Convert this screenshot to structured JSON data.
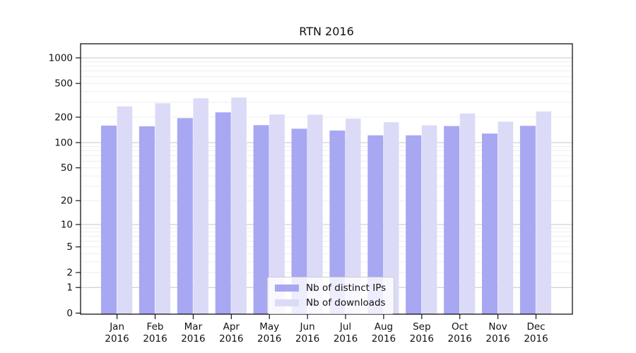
{
  "chart_data": {
    "type": "bar",
    "title": "RTN 2016",
    "categories": [
      "Jan",
      "Feb",
      "Mar",
      "Apr",
      "May",
      "Jun",
      "Jul",
      "Aug",
      "Sep",
      "Oct",
      "Nov",
      "Dec"
    ],
    "x_sublabel": "2016",
    "series": [
      {
        "name": "Nb of distinct IPs",
        "color": "#a7a7f2",
        "values": [
          159,
          156,
          195,
          228,
          161,
          146,
          139,
          122,
          122,
          157,
          128,
          158
        ]
      },
      {
        "name": "Nb of downloads",
        "color": "#dbdbf8",
        "values": [
          268,
          292,
          334,
          341,
          215,
          214,
          192,
          174,
          160,
          221,
          177,
          234
        ]
      }
    ],
    "yscale": "log1p",
    "ylim": [
      0,
      1480
    ],
    "ytick_values": [
      1000,
      500,
      200,
      100,
      50,
      20,
      10,
      5,
      2,
      1,
      0
    ],
    "ytick_labels": [
      "1000",
      "500",
      "200",
      "100",
      "50",
      "20",
      "10",
      "5",
      "2",
      "1",
      "0"
    ],
    "grid": true,
    "legend_position": "lower center",
    "colors": {
      "major_grid": "#c6c6c6",
      "minor_grid": "#ececec",
      "axis": "#000000",
      "text": "#111111"
    }
  }
}
